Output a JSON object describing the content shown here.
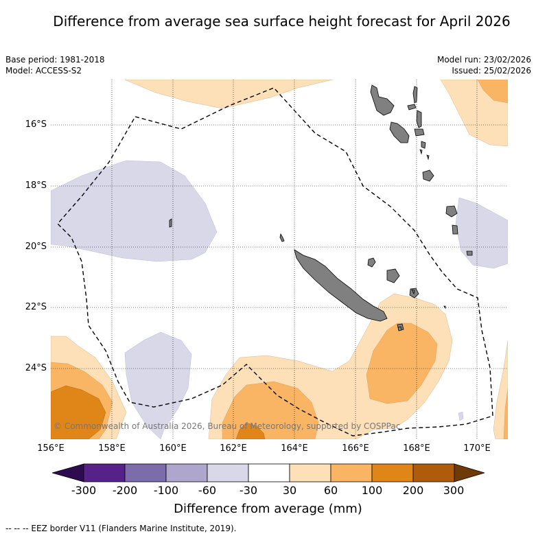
{
  "title": "Difference from average sea surface height forecast for April 2026",
  "meta": {
    "base_period": "Base period: 1981-2018",
    "model": "Model: ACCESS-S2",
    "model_run": "Model run: 23/02/2026",
    "issued": "Issued: 25/02/2026"
  },
  "map": {
    "lon_labels": [
      "156°E",
      "158°E",
      "160°E",
      "162°E",
      "164°E",
      "166°E",
      "168°E",
      "170°E"
    ],
    "lat_labels": [
      "16°S",
      "18°S",
      "20°S",
      "22°S",
      "24°S"
    ],
    "copyright": "© Commonwealth of Australia 2026, Bureau of Meteorology, supported by COSPPac"
  },
  "colorbar": {
    "label": "Difference from average (mm)",
    "ticks": [
      "-300",
      "-200",
      "-100",
      "-60",
      "-30",
      "30",
      "60",
      "100",
      "200",
      "300"
    ],
    "colors": {
      "under": "#2d0b4e",
      "bins": [
        "#56228a",
        "#7d6cab",
        "#aea6cd",
        "#d8d8e8",
        "#ffffff",
        "#fde0b8",
        "#f9b563",
        "#e08517",
        "#b05a0b"
      ],
      "over": "#6e3a08"
    }
  },
  "legend": {
    "eez": "--  --  -- EEZ border V11 (Flanders Marine Institute, 2019)."
  }
}
